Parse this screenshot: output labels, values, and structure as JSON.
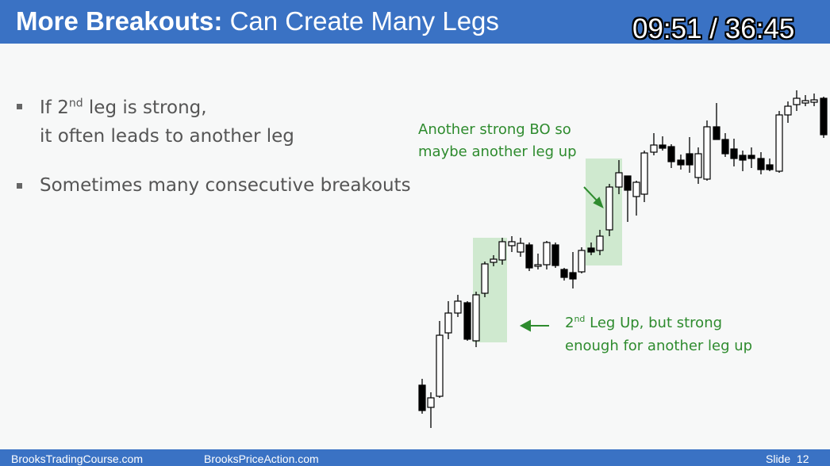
{
  "slide": {
    "title_bold": "More Breakouts:",
    "title_rest": "Can Create Many Legs",
    "timer": "09:51 / 36:45",
    "bullets": {
      "b1_pre": "If 2",
      "b1_sup": "nd",
      "b1_post": " leg is strong,",
      "b1_line2": "it often leads to another leg",
      "b2": "Sometimes many consecutive breakouts"
    },
    "annotations": {
      "top_line1": "Another strong BO so",
      "top_line2": "maybe another leg up",
      "bottom_pre": "2",
      "bottom_sup": "nd",
      "bottom_post": " Leg Up, but strong",
      "bottom_line2": "enough for another leg up"
    },
    "footer": {
      "left": "BrooksTradingCourse.com",
      "middle": "BrooksPriceAction.com",
      "slide_label": "Slide",
      "slide_number": "12"
    }
  },
  "colors": {
    "header_blue": "#3a72c4",
    "annotation_green": "#2e8b2e",
    "highlight_green": "#cfe9cf",
    "bull_candle": "#ffffff",
    "bear_candle": "#000000"
  },
  "icons": {
    "bullet": "square-bullet-icon",
    "arrow_diag": "arrow-down-right-icon",
    "arrow_left": "arrow-left-icon"
  }
}
